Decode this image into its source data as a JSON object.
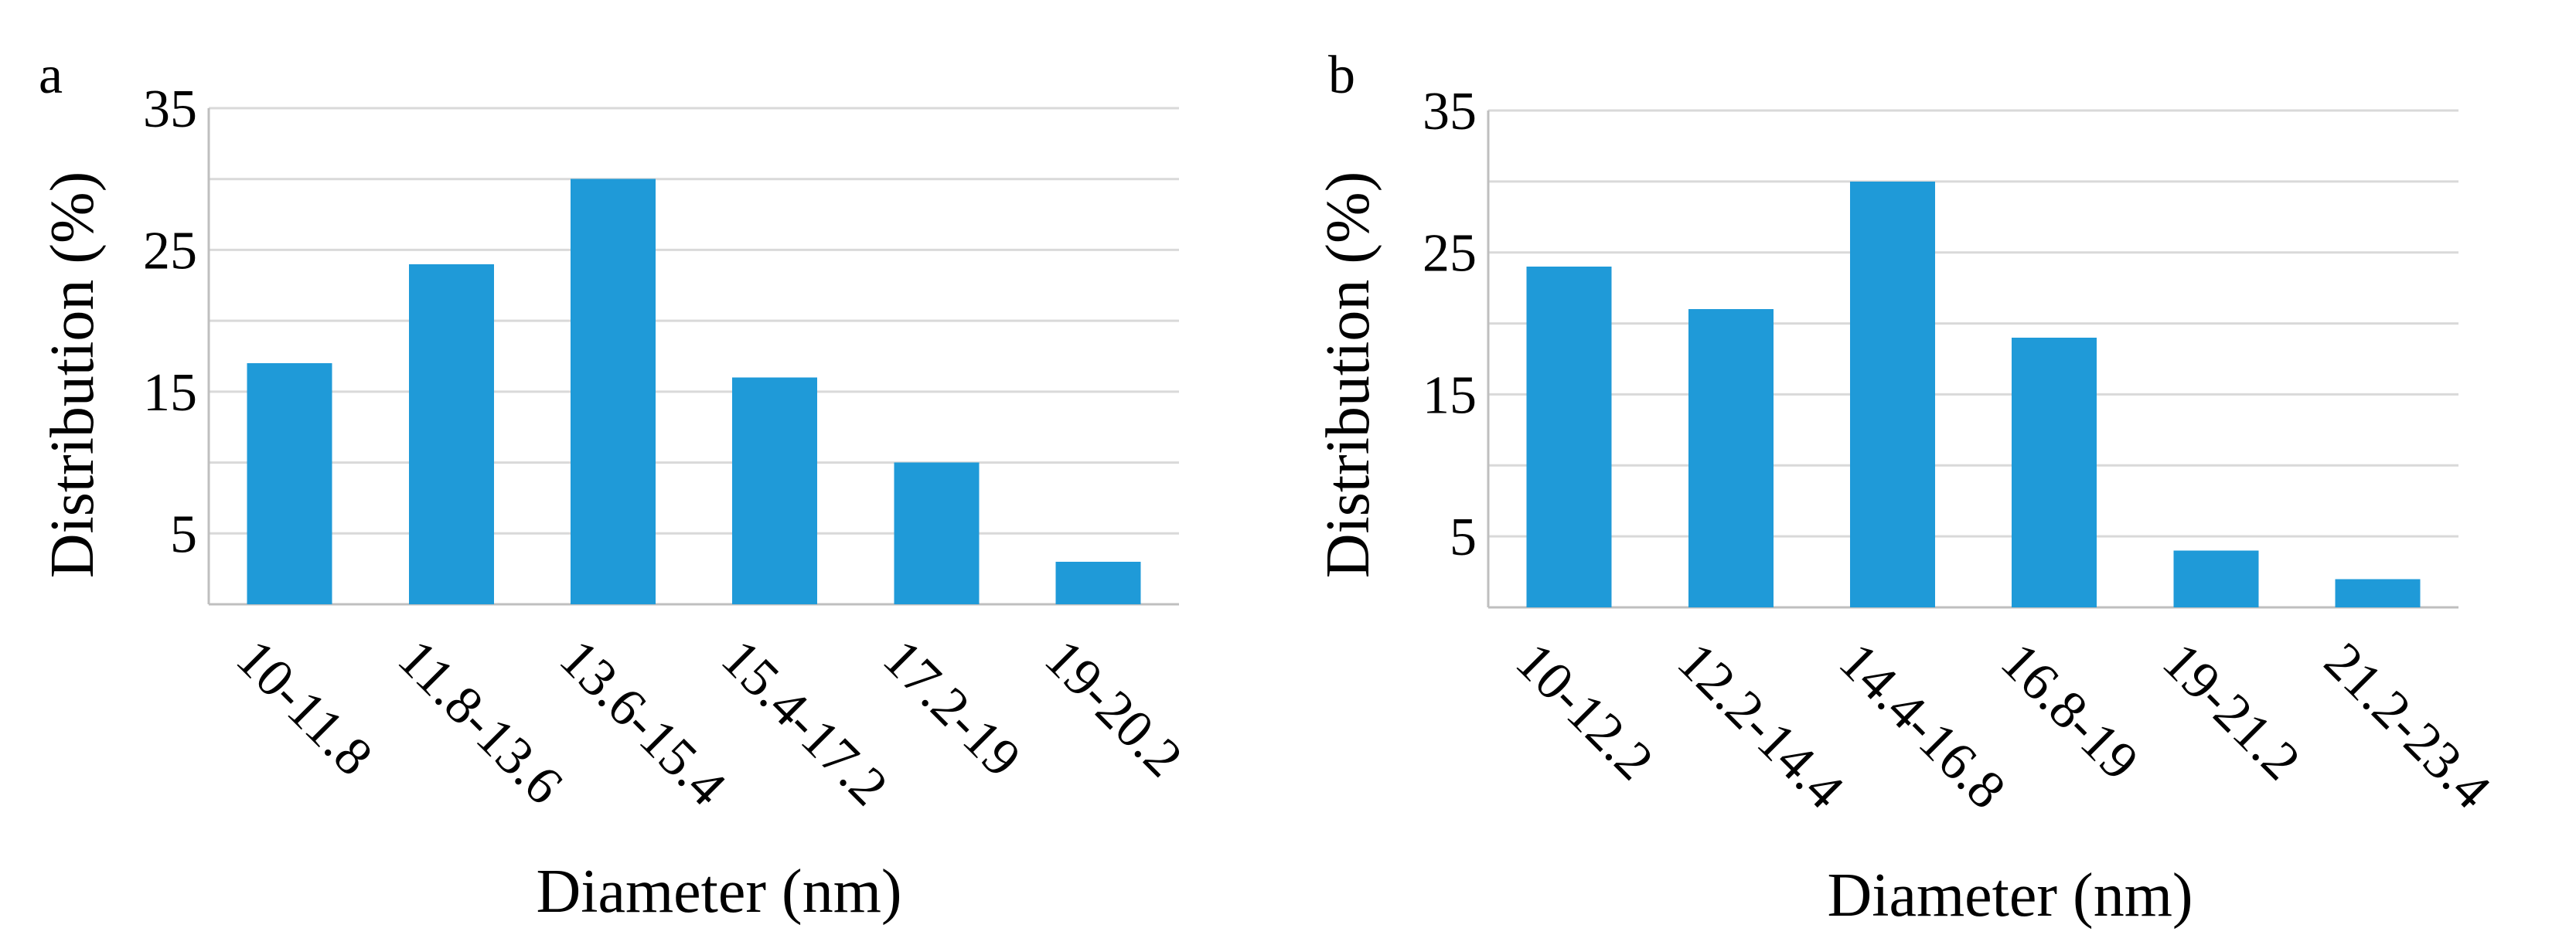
{
  "colors": {
    "bar": "#1f9ad8",
    "grid": "#d9d9d9"
  },
  "chart_data": [
    {
      "type": "bar",
      "panel_label": "a",
      "title": "",
      "xlabel": "Diameter (nm)",
      "ylabel": "Distribution (%)",
      "ylim": [
        0,
        35
      ],
      "yticks": [
        5,
        15,
        25,
        35
      ],
      "grid": true,
      "categories": [
        "10-11.8",
        "11.8-13.6",
        "13.6-15.4",
        "15.4-17.2",
        "17.2-19",
        "19-20.2"
      ],
      "values": [
        17,
        24,
        30,
        16,
        10,
        3
      ]
    },
    {
      "type": "bar",
      "panel_label": "b",
      "title": "",
      "xlabel": "Diameter (nm)",
      "ylabel": "Distribution (%)",
      "ylim": [
        0,
        35
      ],
      "yticks": [
        5,
        15,
        25,
        35
      ],
      "grid": true,
      "categories": [
        "10-12.2",
        "12.2-14.4",
        "14.4-16.8",
        "16.8-19",
        "19-21.2",
        "21.2-23.4"
      ],
      "values": [
        24,
        21,
        30,
        19,
        4,
        2
      ]
    }
  ]
}
